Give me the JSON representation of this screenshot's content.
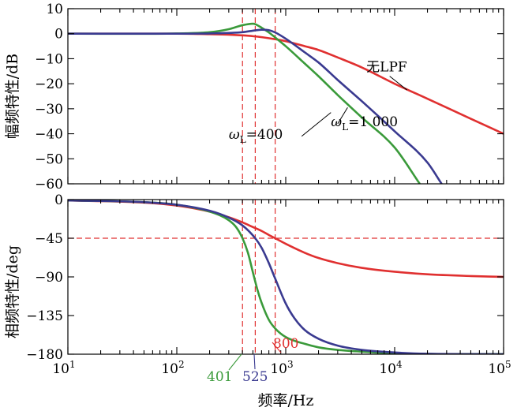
{
  "chart_data": [
    {
      "type": "line",
      "xscale": "log",
      "xlim": [
        10,
        100000
      ],
      "ylim": [
        -60,
        10
      ],
      "ylabel": "幅频特性/dB",
      "xlabel": "",
      "yticks": [
        10,
        0,
        -10,
        -20,
        -30,
        -40,
        -50,
        -60
      ],
      "ytick_labels": [
        "10",
        "0",
        "−10",
        "−20",
        "−30",
        "−40",
        "−50",
        "−60"
      ],
      "grid": false,
      "vlines": [
        401,
        525,
        800
      ],
      "series": [
        {
          "name": "无LPF",
          "color": "#e03030",
          "x": [
            10,
            100,
            200,
            300,
            500,
            800,
            1000,
            1500,
            2000,
            3000,
            5000,
            10000,
            20000,
            50000,
            100000
          ],
          "y": [
            0,
            0,
            -0.2,
            -0.4,
            -1.0,
            -2.2,
            -3.0,
            -5.0,
            -6.5,
            -9.5,
            -13.5,
            -20.0,
            -26.0,
            -34.0,
            -40.0
          ]
        },
        {
          "name": "ωL=400",
          "color": "#3a9a3a",
          "x": [
            10,
            100,
            200,
            300,
            401,
            500,
            525,
            600,
            700,
            800,
            1000,
            1500,
            2000,
            3000,
            5000,
            10000,
            17000
          ],
          "y": [
            0,
            0.1,
            0.6,
            1.8,
            3.4,
            4.0,
            3.8,
            2.4,
            0.5,
            -1.5,
            -5.0,
            -12.0,
            -17.0,
            -24.5,
            -33.5,
            -45.5,
            -60.0
          ]
        },
        {
          "name": "ωL=1 000",
          "color": "#3a3a90",
          "x": [
            10,
            100,
            200,
            400,
            500,
            600,
            700,
            800,
            1000,
            1500,
            2000,
            3000,
            5000,
            10000,
            20000,
            27000
          ],
          "y": [
            0,
            0,
            0.1,
            0.6,
            1.2,
            1.6,
            1.4,
            0.5,
            -2.0,
            -7.5,
            -11.5,
            -18.5,
            -27.0,
            -39.0,
            -51.5,
            -60.0
          ]
        }
      ],
      "annotations": [
        {
          "text": "无LPF",
          "x": 5500,
          "y": -15
        },
        {
          "text": "ωL=400",
          "x": 300,
          "y": -42
        },
        {
          "text": "ωL=1 000",
          "x": 2600,
          "y": -37
        }
      ]
    },
    {
      "type": "line",
      "xscale": "log",
      "xlim": [
        10,
        100000
      ],
      "ylim": [
        -180,
        0
      ],
      "ylabel": "相频特性/deg",
      "xlabel": "频率/Hz",
      "yticks": [
        0,
        -45,
        -90,
        -135,
        -180
      ],
      "ytick_labels": [
        "0",
        "−45",
        "−90",
        "−135",
        "−180"
      ],
      "xticks": [
        10,
        100,
        1000,
        10000,
        100000
      ],
      "xtick_labels": [
        [
          "10",
          "1"
        ],
        [
          "10",
          "2"
        ],
        [
          "10",
          "3"
        ],
        [
          "10",
          "4"
        ],
        [
          "10",
          "5"
        ]
      ],
      "grid": false,
      "vlines": [
        401,
        525,
        800
      ],
      "hline": -45,
      "series": [
        {
          "name": "无LPF",
          "color": "#e03030",
          "x": [
            10,
            50,
            100,
            200,
            300,
            400,
            500,
            600,
            700,
            800,
            1000,
            1500,
            2000,
            3000,
            5000,
            10000,
            20000,
            50000,
            100000
          ],
          "y": [
            -1,
            -3.5,
            -7,
            -14,
            -20.5,
            -26.5,
            -32,
            -36.5,
            -41.2,
            -45,
            -51.5,
            -62,
            -68,
            -74,
            -79.5,
            -84,
            -87,
            -89,
            -90
          ]
        },
        {
          "name": "ωL=400",
          "color": "#3a9a3a",
          "x": [
            10,
            50,
            100,
            200,
            300,
            350,
            401,
            450,
            500,
            550,
            600,
            700,
            800,
            1000,
            1500,
            2000,
            3000,
            5000,
            10000,
            100000
          ],
          "y": [
            -1,
            -3,
            -6,
            -14,
            -24,
            -32,
            -45,
            -62,
            -85,
            -105,
            -120,
            -140,
            -150,
            -160,
            -168,
            -172,
            -175,
            -177,
            -179,
            -180
          ]
        },
        {
          "name": "ωL=1 000",
          "color": "#3a3a90",
          "x": [
            10,
            50,
            100,
            200,
            300,
            400,
            525,
            600,
            700,
            800,
            1000,
            1200,
            1500,
            2000,
            3000,
            5000,
            10000,
            20000,
            100000
          ],
          "y": [
            -1,
            -3,
            -6,
            -13,
            -21,
            -30,
            -45,
            -56,
            -74,
            -92,
            -121,
            -138,
            -152,
            -162,
            -170,
            -175,
            -178,
            -179.5,
            -180
          ]
        }
      ],
      "vline_labels": [
        {
          "text": "401",
          "value": 401,
          "color": "#3a9a3a"
        },
        {
          "text": "525",
          "value": 525,
          "color": "#3a3a90"
        },
        {
          "text": "800",
          "value": 800,
          "color": "#e03030"
        }
      ]
    }
  ]
}
